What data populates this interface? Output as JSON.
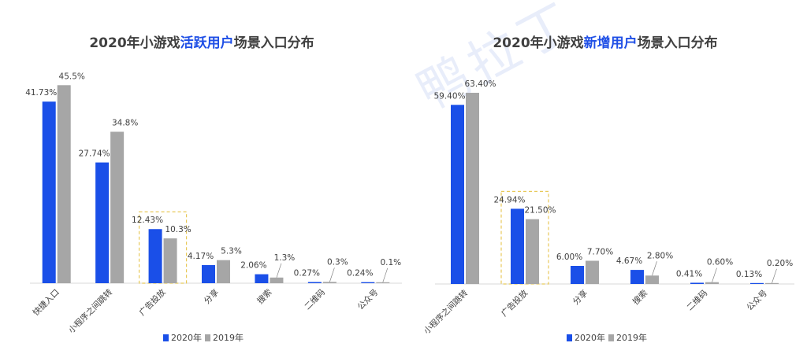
{
  "colors": {
    "series_2020": "#1a4fe8",
    "series_2019": "#a6a6a6",
    "title_highlight": "#1f4fe6",
    "highlight_box": "#e8c95a"
  },
  "watermark": "鸭拉丁",
  "chart_data": [
    {
      "type": "bar",
      "title_prefix": "2020年小游戏",
      "title_highlight": "活跃用户",
      "title_suffix": "场景入口分布",
      "categories": [
        "快捷入口",
        "小程序之间跳转",
        "广告投放",
        "分享",
        "搜索",
        "二维码",
        "公众号"
      ],
      "series": [
        {
          "name": "2020年",
          "values": [
            41.73,
            27.74,
            12.43,
            4.17,
            2.06,
            0.27,
            0.24
          ],
          "labels": [
            "41.73%",
            "27.74%",
            "12.43%",
            "4.17%",
            "2.06%",
            "0.27%",
            "0.24%"
          ]
        },
        {
          "name": "2019年",
          "values": [
            45.5,
            34.8,
            10.3,
            5.3,
            1.3,
            0.3,
            0.1
          ],
          "labels": [
            "45.5%",
            "34.8%",
            "10.3%",
            "5.3%",
            "1.3%",
            "0.3%",
            "0.1%"
          ]
        }
      ],
      "ylim": [
        0,
        47
      ],
      "highlight_category": "广告投放",
      "legend": "bottom"
    },
    {
      "type": "bar",
      "title_prefix": "2020年小游戏",
      "title_highlight": "新增用户",
      "title_suffix": "场景入口分布",
      "categories": [
        "小程序之间跳转",
        "广告投放",
        "分享",
        "搜索",
        "二维码",
        "公众号"
      ],
      "series": [
        {
          "name": "2020年",
          "values": [
            59.4,
            24.94,
            6.0,
            4.67,
            0.41,
            0.13
          ],
          "labels": [
            "59.40%",
            "24.94%",
            "6.00%",
            "4.67%",
            "0.41%",
            "0.13%"
          ]
        },
        {
          "name": "2019年",
          "values": [
            63.4,
            21.5,
            7.7,
            2.8,
            0.6,
            0.2
          ],
          "labels": [
            "63.40%",
            "21.50%",
            "7.70%",
            "2.80%",
            "0.60%",
            "0.20%"
          ]
        }
      ],
      "ylim": [
        0,
        66
      ],
      "highlight_category": "广告投放",
      "legend": "bottom"
    }
  ]
}
